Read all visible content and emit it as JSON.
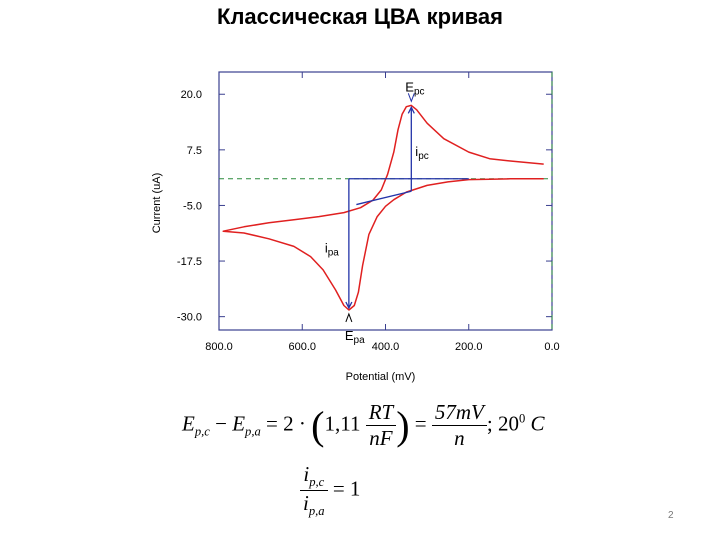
{
  "title": "Классическая ЦВА кривая",
  "page_number": "2",
  "chart_data": {
    "type": "line",
    "xlabel": "Potential (mV)",
    "ylabel": "Current (uA)",
    "xlim": [
      800,
      0
    ],
    "ylim": [
      -33,
      25
    ],
    "x_ticks": [
      {
        "value": 800,
        "label": "800.0"
      },
      {
        "value": 600,
        "label": "600.0"
      },
      {
        "value": 400,
        "label": "400.0"
      },
      {
        "value": 200,
        "label": "200.0"
      },
      {
        "value": 0,
        "label": "0.0"
      }
    ],
    "y_ticks": [
      {
        "value": 20,
        "label": "20.0"
      },
      {
        "value": 7.5,
        "label": "7.5"
      },
      {
        "value": -5,
        "label": "-5.0"
      },
      {
        "value": -17.5,
        "label": "-17.5"
      },
      {
        "value": -30,
        "label": "-30.0"
      }
    ],
    "grid": false,
    "series": [
      {
        "color": "#e02020",
        "points": [
          [
            20,
            1.0
          ],
          [
            100,
            1.0
          ],
          [
            150,
            0.9
          ],
          [
            200,
            0.8
          ],
          [
            250,
            0.3
          ],
          [
            300,
            -0.5
          ],
          [
            350,
            -2.0
          ],
          [
            380,
            -3.7
          ],
          [
            400,
            -5.2
          ],
          [
            420,
            -7.5
          ],
          [
            440,
            -11.5
          ],
          [
            455,
            -18.5
          ],
          [
            465,
            -24.5
          ],
          [
            475,
            -27.5
          ],
          [
            488,
            -28.5
          ],
          [
            500,
            -27.5
          ],
          [
            520,
            -24.0
          ],
          [
            550,
            -19.5
          ],
          [
            580,
            -16.5
          ],
          [
            620,
            -14.2
          ],
          [
            680,
            -12.5
          ],
          [
            740,
            -11.2
          ],
          [
            790,
            -10.8
          ],
          [
            740,
            -9.8
          ],
          [
            680,
            -8.9
          ],
          [
            620,
            -8.2
          ],
          [
            560,
            -7.5
          ],
          [
            500,
            -6.6
          ],
          [
            460,
            -5.5
          ],
          [
            430,
            -3.8
          ],
          [
            410,
            -1.5
          ],
          [
            395,
            2.0
          ],
          [
            380,
            7.0
          ],
          [
            370,
            12.0
          ],
          [
            360,
            15.5
          ],
          [
            350,
            17.2
          ],
          [
            338,
            17.5
          ],
          [
            325,
            16.5
          ],
          [
            300,
            13.5
          ],
          [
            260,
            10.0
          ],
          [
            200,
            7.0
          ],
          [
            150,
            5.5
          ],
          [
            100,
            5.0
          ],
          [
            20,
            4.3
          ]
        ]
      }
    ],
    "reference_lines": {
      "horizontal_y": 1.0,
      "vertical_x": 0
    },
    "annotations": [
      {
        "name": "E",
        "subscript": "pc",
        "x": 338,
        "y": 17.5
      },
      {
        "name": "E",
        "subscript": "pa",
        "x": 488,
        "y": -28.5
      },
      {
        "name": "i",
        "subscript": "pc",
        "x": 338,
        "y": 7.5
      },
      {
        "name": "i",
        "subscript": "pa",
        "x": 488,
        "y": -13.8
      }
    ],
    "baselines": [
      {
        "from": [
          470,
          -4.8
        ],
        "to": [
          338,
          -1.8
        ]
      },
      {
        "from": [
          200,
          1.0
        ],
        "to": [
          488,
          1.0
        ]
      }
    ]
  },
  "formulas": {
    "eq1": {
      "lhs_a": "E",
      "lhs_a_sub": "p,c",
      "minus": "−",
      "lhs_b": "E",
      "lhs_b_sub": "p,a",
      "eq": "= 2 ·",
      "paren_open": "(",
      "coef": "1,11",
      "frac1_num": "RT",
      "frac1_den": "nF",
      "paren_close": ")",
      "eq2": "=",
      "frac2_num": "57mV",
      "frac2_den": "n",
      "temp": "; 20",
      "temp_sup": "0",
      "temp_unit": " C"
    },
    "eq2": {
      "num": "i",
      "num_sub": "p,c",
      "den": "i",
      "den_sub": "p,a",
      "rhs": "= 1"
    }
  }
}
